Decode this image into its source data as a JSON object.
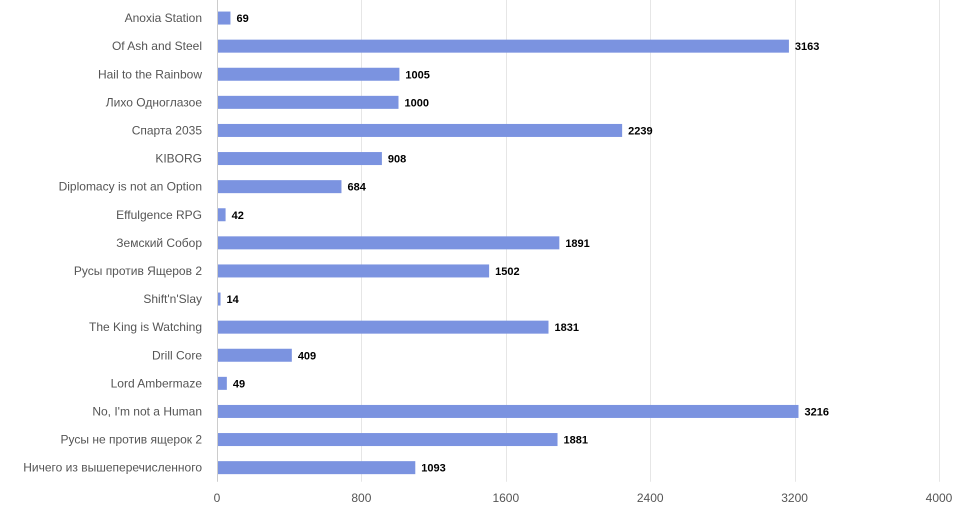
{
  "chart_data": {
    "type": "bar",
    "orientation": "horizontal",
    "categories": [
      "Anoxia Station",
      "Of Ash and Steel",
      "Hail to the Rainbow",
      "Лихо Одноглазое",
      "Спарта 2035",
      "KIBORG",
      "Diplomacy is not an Option",
      "Effulgence RPG",
      "Земский Собор",
      "Русы против Ящеров 2",
      "Shift'n'Slay",
      "The King is Watching",
      "Drill Core",
      "Lord Ambermaze",
      "No, I'm not a Human",
      "Русы не против ящерок 2",
      "Ничего из вышеперечисленного"
    ],
    "values": [
      69,
      3163,
      1005,
      1000,
      2239,
      908,
      684,
      42,
      1891,
      1502,
      14,
      1831,
      409,
      49,
      3216,
      1881,
      1093
    ],
    "xlim": [
      0,
      4000
    ],
    "xticks": [
      0,
      800,
      1600,
      2400,
      3200,
      4000
    ],
    "title": "",
    "xlabel": "",
    "ylabel": "",
    "grid": true,
    "data_labels": true,
    "colors": {
      "bar": "#7b93e0",
      "grid": "#e6e6e6",
      "axis": "#cccccc",
      "category_text": "#555555",
      "value_text": "#000000"
    }
  }
}
